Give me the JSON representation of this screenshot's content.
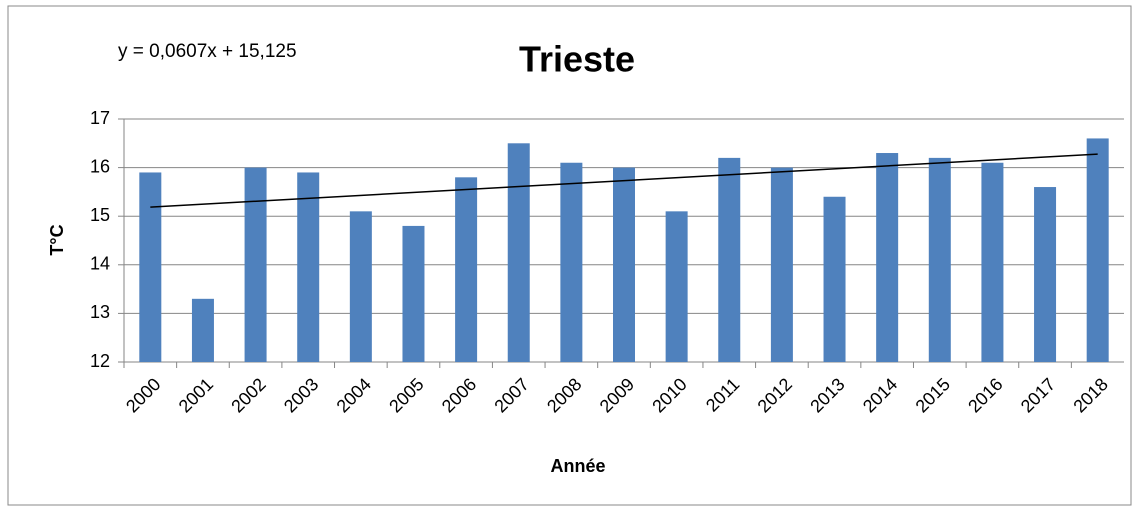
{
  "chart_data": {
    "type": "bar",
    "title": "Trieste",
    "annotation": "y = 0,0607x + 15,125",
    "xlabel": "Année",
    "ylabel": "T°C",
    "categories": [
      "2000",
      "2001",
      "2002",
      "2003",
      "2004",
      "2005",
      "2006",
      "2007",
      "2008",
      "2009",
      "2010",
      "2011",
      "2012",
      "2013",
      "2014",
      "2015",
      "2016",
      "2017",
      "2018"
    ],
    "values": [
      15.9,
      13.3,
      16,
      15.9,
      15.1,
      14.8,
      15.8,
      16.5,
      16.1,
      16,
      15.1,
      16.2,
      16,
      15.4,
      16.3,
      16.2,
      16.1,
      15.6,
      16.6
    ],
    "color": "#4f81bd",
    "trendline": {
      "slope": 0.0607,
      "intercept": 15.125,
      "color": "#000000"
    },
    "ylim": [
      12,
      17
    ],
    "yticks": [
      12,
      13,
      14,
      15,
      16,
      17
    ],
    "grid": true
  }
}
